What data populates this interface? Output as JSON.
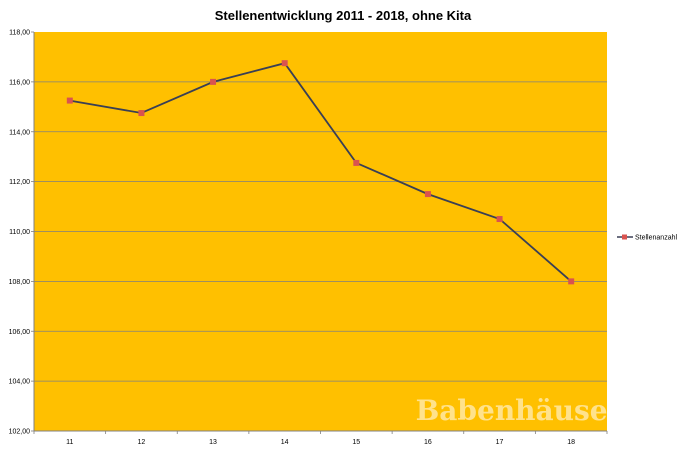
{
  "chart_data": {
    "type": "line",
    "title": "Stellenentwicklung 2011 - 2018, ohne Kita",
    "xlabel": "",
    "ylabel": "",
    "categories": [
      "11",
      "12",
      "13",
      "14",
      "15",
      "16",
      "17",
      "18"
    ],
    "series": [
      {
        "name": "Stellenanzahl",
        "values": [
          115.25,
          114.75,
          116.0,
          116.75,
          112.75,
          111.5,
          110.5,
          108.0
        ],
        "color": "#3a3f55",
        "marker_color": "#d9534f"
      }
    ],
    "ylim": [
      102,
      118
    ],
    "y_ticks": [
      "102,00",
      "104,00",
      "106,00",
      "108,00",
      "110,00",
      "112,00",
      "114,00",
      "116,00",
      "118,00"
    ],
    "grid": true,
    "legend_position": "right",
    "plot_background": "#ffc000"
  },
  "watermark_text": "Babenhäuser"
}
